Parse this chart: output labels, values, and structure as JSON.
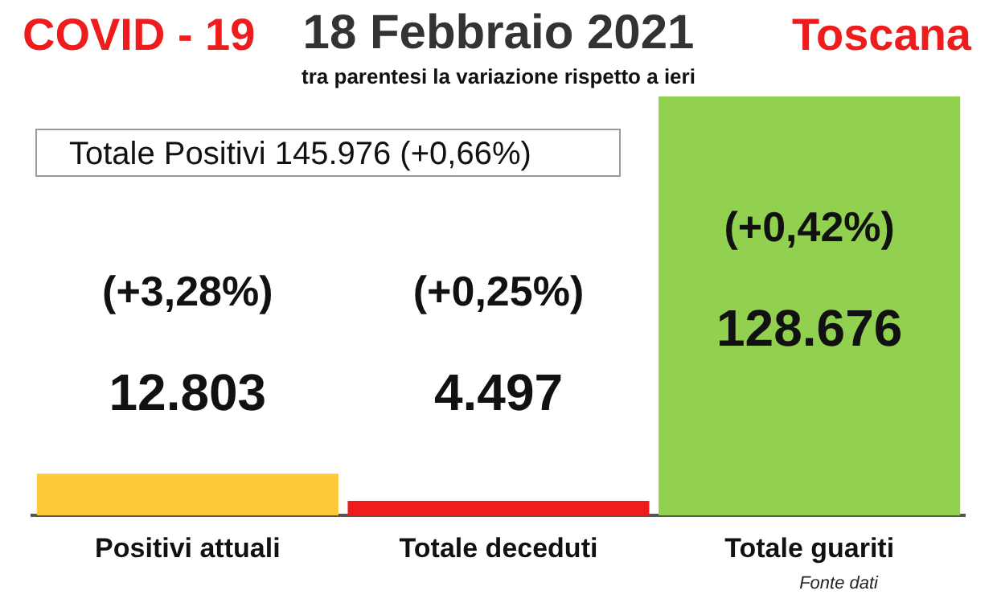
{
  "chart_data": {
    "type": "bar",
    "title": "18 Febbraio 2021",
    "subtitle": "tra parentesi la variazione rispetto a ieri",
    "categories": [
      "Positivi attuali",
      "Totale deceduti",
      "Totale guariti"
    ],
    "values": [
      12803,
      4497,
      128676
    ],
    "colors": [
      "#fdc83a",
      "#ee1c1c",
      "#92d050"
    ],
    "value_labels": [
      "12.803",
      "4.497",
      "128.676"
    ],
    "annotations": [
      "COVID - 19",
      "Toscana",
      "Totale Positivi    145.976 (+0,66%)",
      "Fonte dati",
      "(+3,28%)",
      "(+0,25%)",
      "(+0,42%)"
    ],
    "legend": false
  }
}
